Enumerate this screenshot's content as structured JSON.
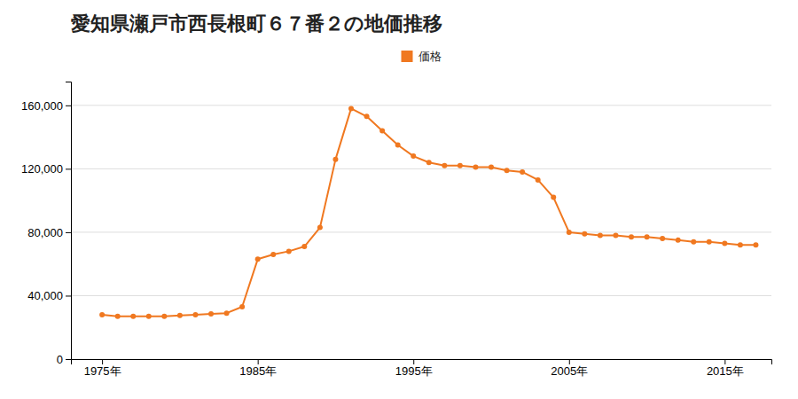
{
  "chart_data": {
    "type": "line",
    "title": "愛知県瀬戸市西長根町６７番２の地価推移",
    "x": [
      1975,
      1976,
      1977,
      1978,
      1979,
      1980,
      1981,
      1982,
      1983,
      1984,
      1985,
      1986,
      1987,
      1988,
      1989,
      1990,
      1991,
      1992,
      1993,
      1994,
      1995,
      1996,
      1997,
      1998,
      1999,
      2000,
      2001,
      2002,
      2003,
      2004,
      2005,
      2006,
      2007,
      2008,
      2009,
      2010,
      2011,
      2012,
      2013,
      2014,
      2015,
      2016,
      2017
    ],
    "series": [
      {
        "name": "価格",
        "color": "#f07820",
        "marker": "circle",
        "values": [
          28000,
          27000,
          27000,
          27000,
          27000,
          27500,
          28000,
          28500,
          29000,
          33000,
          63000,
          66000,
          68000,
          71000,
          83000,
          126000,
          158000,
          153000,
          144000,
          135000,
          128000,
          124000,
          122000,
          122000,
          121000,
          121000,
          119000,
          118000,
          113000,
          102000,
          80000,
          79000,
          78000,
          78000,
          77000,
          77000,
          76000,
          75000,
          74000,
          74000,
          73000,
          72000,
          72000
        ]
      }
    ],
    "xlim": [
      1973,
      2018
    ],
    "xticks": [
      {
        "value": 1975,
        "label": "1975年"
      },
      {
        "value": 1985,
        "label": "1985年"
      },
      {
        "value": 1995,
        "label": "1995年"
      },
      {
        "value": 2005,
        "label": "2005年"
      },
      {
        "value": 2015,
        "label": "2015年"
      }
    ],
    "ylim": [
      0,
      175000
    ],
    "yticks": [
      0,
      {
        "value": 40000,
        "label": "40,000"
      },
      {
        "value": 80000,
        "label": "80,000"
      },
      {
        "value": 120000,
        "label": "120,000"
      },
      {
        "value": 160000,
        "label": "160,000"
      }
    ],
    "grid": true,
    "legend": "top"
  }
}
